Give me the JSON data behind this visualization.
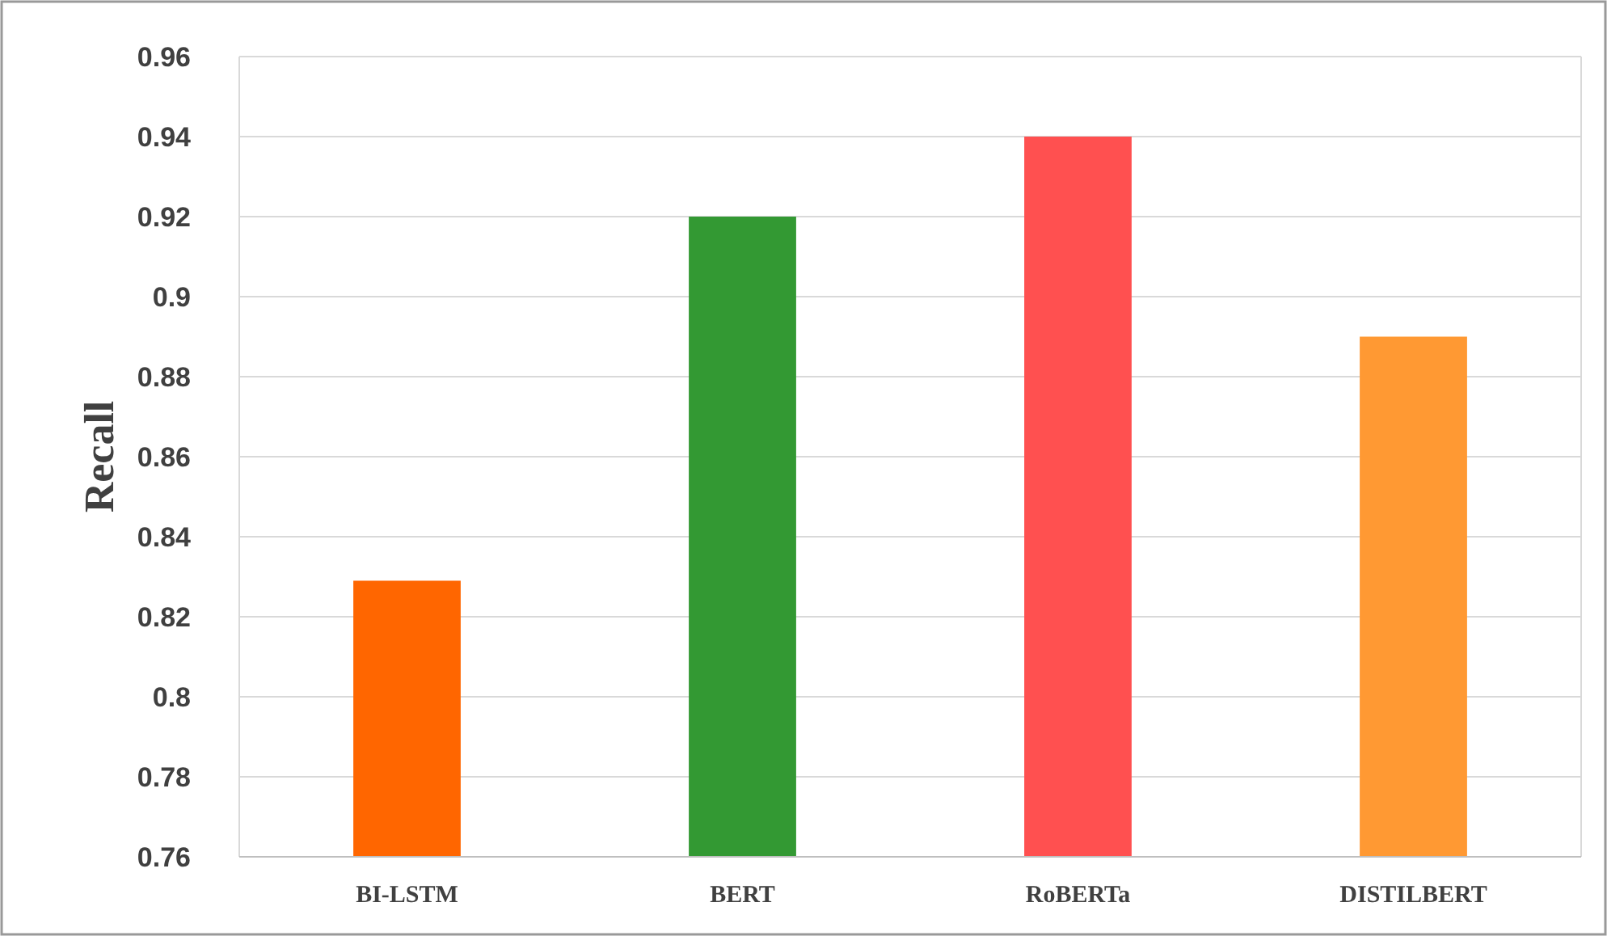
{
  "chart_data": {
    "type": "bar",
    "ylabel": "Recall",
    "categories": [
      "BI-LSTM",
      "BERT",
      "RoBERTa",
      "DISTILBERT"
    ],
    "values": [
      0.829,
      0.92,
      0.94,
      0.89
    ],
    "colors": [
      "#ff6600",
      "#339933",
      "#ff5050",
      "#ff9933"
    ],
    "ylim": [
      0.76,
      0.96
    ],
    "yticks": [
      0.76,
      0.78,
      0.8,
      0.82,
      0.84,
      0.86,
      0.88,
      0.9,
      0.92,
      0.94,
      0.96
    ],
    "grid": "y"
  }
}
